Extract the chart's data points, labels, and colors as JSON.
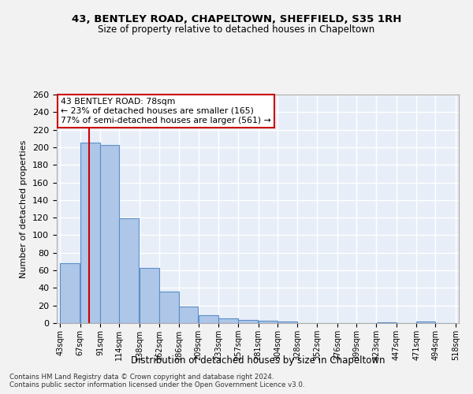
{
  "title1": "43, BENTLEY ROAD, CHAPELTOWN, SHEFFIELD, S35 1RH",
  "title2": "Size of property relative to detached houses in Chapeltown",
  "xlabel": "Distribution of detached houses by size in Chapeltown",
  "ylabel": "Number of detached properties",
  "footer1": "Contains HM Land Registry data © Crown copyright and database right 2024.",
  "footer2": "Contains public sector information licensed under the Open Government Licence v3.0.",
  "bar_edges": [
    43,
    67,
    91,
    114,
    138,
    162,
    186,
    209,
    233,
    257,
    281,
    304,
    328,
    352,
    376,
    399,
    423,
    447,
    471,
    494,
    518
  ],
  "bar_values": [
    68,
    205,
    203,
    119,
    63,
    36,
    19,
    9,
    5,
    4,
    3,
    2,
    0,
    0,
    0,
    0,
    1,
    0,
    2,
    0
  ],
  "bar_color": "#aec6e8",
  "bar_edge_color": "#5b8fc9",
  "property_size": 78,
  "vline_color": "#cc0000",
  "annotation_line1": "43 BENTLEY ROAD: 78sqm",
  "annotation_line2": "← 23% of detached houses are smaller (165)",
  "annotation_line3": "77% of semi-detached houses are larger (561) →",
  "annotation_box_color": "#ffffff",
  "annotation_box_edge": "#cc0000",
  "ylim": [
    0,
    260
  ],
  "background_color": "#e8eef8",
  "grid_color": "#ffffff",
  "fig_background": "#f2f2f2",
  "tick_labels": [
    "43sqm",
    "67sqm",
    "91sqm",
    "114sqm",
    "138sqm",
    "162sqm",
    "186sqm",
    "209sqm",
    "233sqm",
    "257sqm",
    "281sqm",
    "304sqm",
    "328sqm",
    "352sqm",
    "376sqm",
    "399sqm",
    "423sqm",
    "447sqm",
    "471sqm",
    "494sqm",
    "518sqm"
  ],
  "yticks": [
    0,
    20,
    40,
    60,
    80,
    100,
    120,
    140,
    160,
    180,
    200,
    220,
    240,
    260
  ]
}
